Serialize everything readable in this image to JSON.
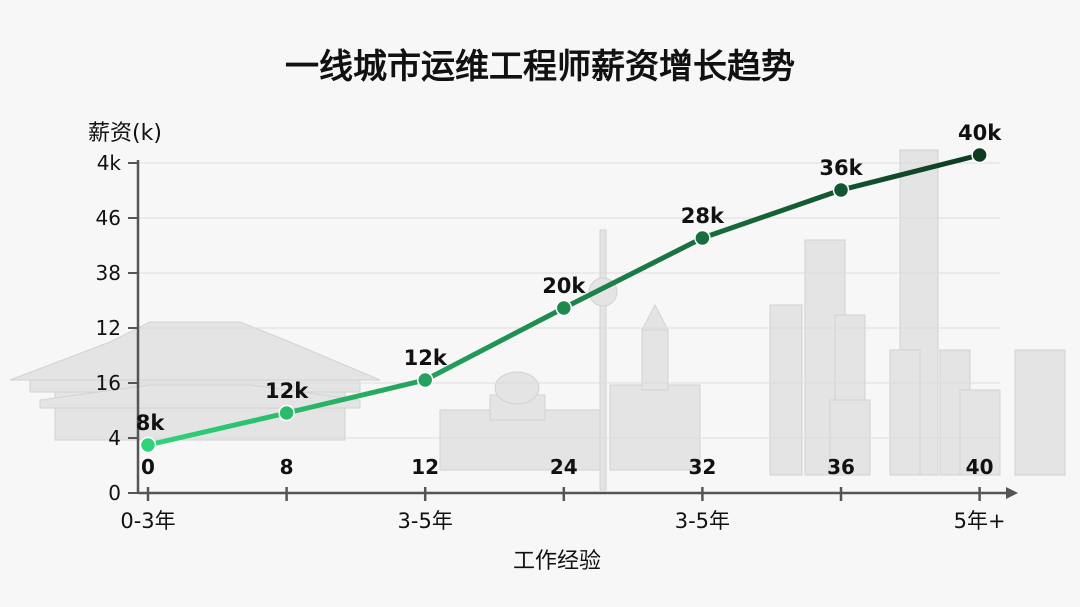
{
  "chart_data": {
    "type": "line",
    "title": "一线城市运维工程师薪资增长趋势",
    "ylabel": "薪资(k)",
    "xlabel": "工作经验",
    "yticks": [
      "0",
      "4",
      "16",
      "12",
      "38",
      "46",
      "4k"
    ],
    "xticks": [
      "0-3年",
      "",
      "3-5年",
      "",
      "3-5年",
      "",
      "5年+"
    ],
    "series": [
      {
        "values": [
          8,
          12,
          12,
          20,
          28,
          36,
          40
        ],
        "labels": [
          "8k",
          "12k",
          "12k",
          "20k",
          "28k",
          "36k",
          "40k"
        ]
      }
    ],
    "under_labels": [
      "0",
      "8",
      "12",
      "24",
      "32",
      "36",
      "40"
    ],
    "line_colors": [
      "#2fd47a",
      "#0d3b20"
    ],
    "grid": true,
    "background": "skyline-illustration"
  }
}
